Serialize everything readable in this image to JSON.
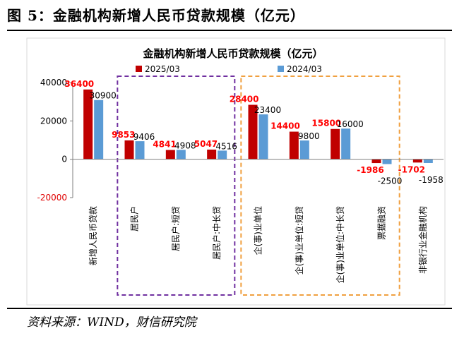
{
  "figure": {
    "title": "图 5：金融机构新增人民币贷款规模（亿元）",
    "source": "资料来源：WIND，财信研究院"
  },
  "chart_data": {
    "type": "bar",
    "title": "金融机构新增人民币贷款规模（亿元）",
    "categories": [
      "新增人民币贷款",
      "居民户",
      "居民户:短贷",
      "居民户:中长贷",
      "企(事)业单位",
      "企(事)业单位:短贷",
      "企(事)业单位:中长贷",
      "票据融资",
      "非银行业金融机构"
    ],
    "series": [
      {
        "name": "2025/03",
        "values": [
          36400,
          9853,
          4841,
          5047,
          28400,
          14400,
          15800,
          -1986,
          -1702
        ],
        "color": "#c00000",
        "label_color": "#ff0000"
      },
      {
        "name": "2024/03",
        "values": [
          30900,
          9406,
          4908,
          4516,
          23400,
          9800,
          16000,
          -2500,
          -1958
        ],
        "color": "#5b9bd5",
        "label_color": "#000000"
      }
    ],
    "ylim": [
      -20000,
      40000
    ],
    "yticks": [
      40000,
      20000,
      0,
      -20000
    ],
    "legend_position": "top",
    "grid": false,
    "highlight_groups": [
      {
        "categories": [
          "居民户",
          "居民户:短贷",
          "居民户:中长贷"
        ],
        "color": "#7030a0",
        "style": "dashed"
      },
      {
        "categories": [
          "企(事)业单位",
          "企(事)业单位:短贷",
          "企(事)业单位:中长贷",
          "票据融资"
        ],
        "color": "#f0a040",
        "style": "dashed"
      }
    ]
  }
}
